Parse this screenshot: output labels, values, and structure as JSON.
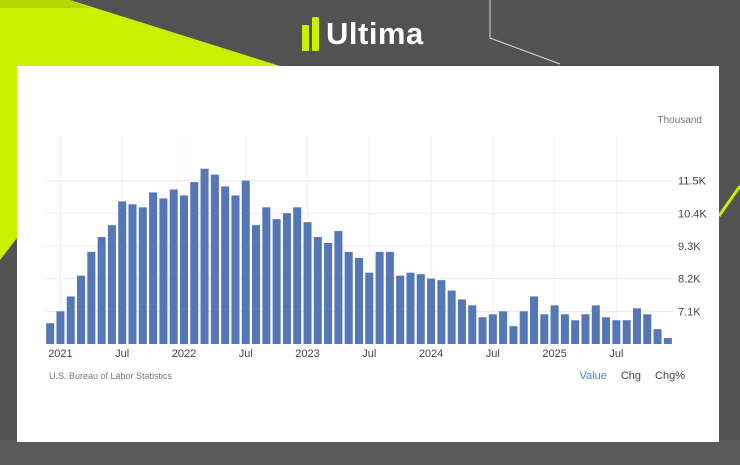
{
  "brand": {
    "name": "Ultima",
    "accent": "#c8f000"
  },
  "chart_data": {
    "type": "bar",
    "unit": "Thousand",
    "color": "#5577b5",
    "ylim": [
      6000,
      13000
    ],
    "yticks": [
      7100,
      8200,
      9300,
      10400,
      11500
    ],
    "ytick_labels": [
      "7.1K",
      "8.2K",
      "9.3K",
      "10.4K",
      "11.5K"
    ],
    "xtick_labels": [
      {
        "index": 1,
        "label": "2021"
      },
      {
        "index": 7,
        "label": "Jul"
      },
      {
        "index": 13,
        "label": "2022"
      },
      {
        "index": 19,
        "label": "Jul"
      },
      {
        "index": 25,
        "label": "2023"
      },
      {
        "index": 31,
        "label": "Jul"
      },
      {
        "index": 37,
        "label": "2024"
      },
      {
        "index": 43,
        "label": "Jul"
      },
      {
        "index": 49,
        "label": "2025"
      },
      {
        "index": 55,
        "label": "Jul"
      }
    ],
    "values": [
      6700,
      7100,
      7600,
      8300,
      9100,
      9600,
      10000,
      10800,
      10700,
      10600,
      11100,
      10900,
      11200,
      11000,
      11450,
      11900,
      11700,
      11300,
      11000,
      11500,
      10000,
      10600,
      10200,
      10400,
      10600,
      10100,
      9600,
      9400,
      9800,
      9100,
      8900,
      8400,
      9100,
      9100,
      8300,
      8400,
      8350,
      8200,
      8150,
      7800,
      7500,
      7300,
      6900,
      7000,
      7100,
      6600,
      7100,
      7600,
      7000,
      7300,
      7000,
      6800,
      7000,
      7300,
      6900,
      6800,
      6800,
      7200,
      7000,
      6500,
      6200
    ]
  },
  "footer": {
    "source": "U.S. Bureau of Labor Statistics",
    "tabs": [
      "Value",
      "Chg",
      "Chg%"
    ],
    "active_tab": "Value"
  }
}
